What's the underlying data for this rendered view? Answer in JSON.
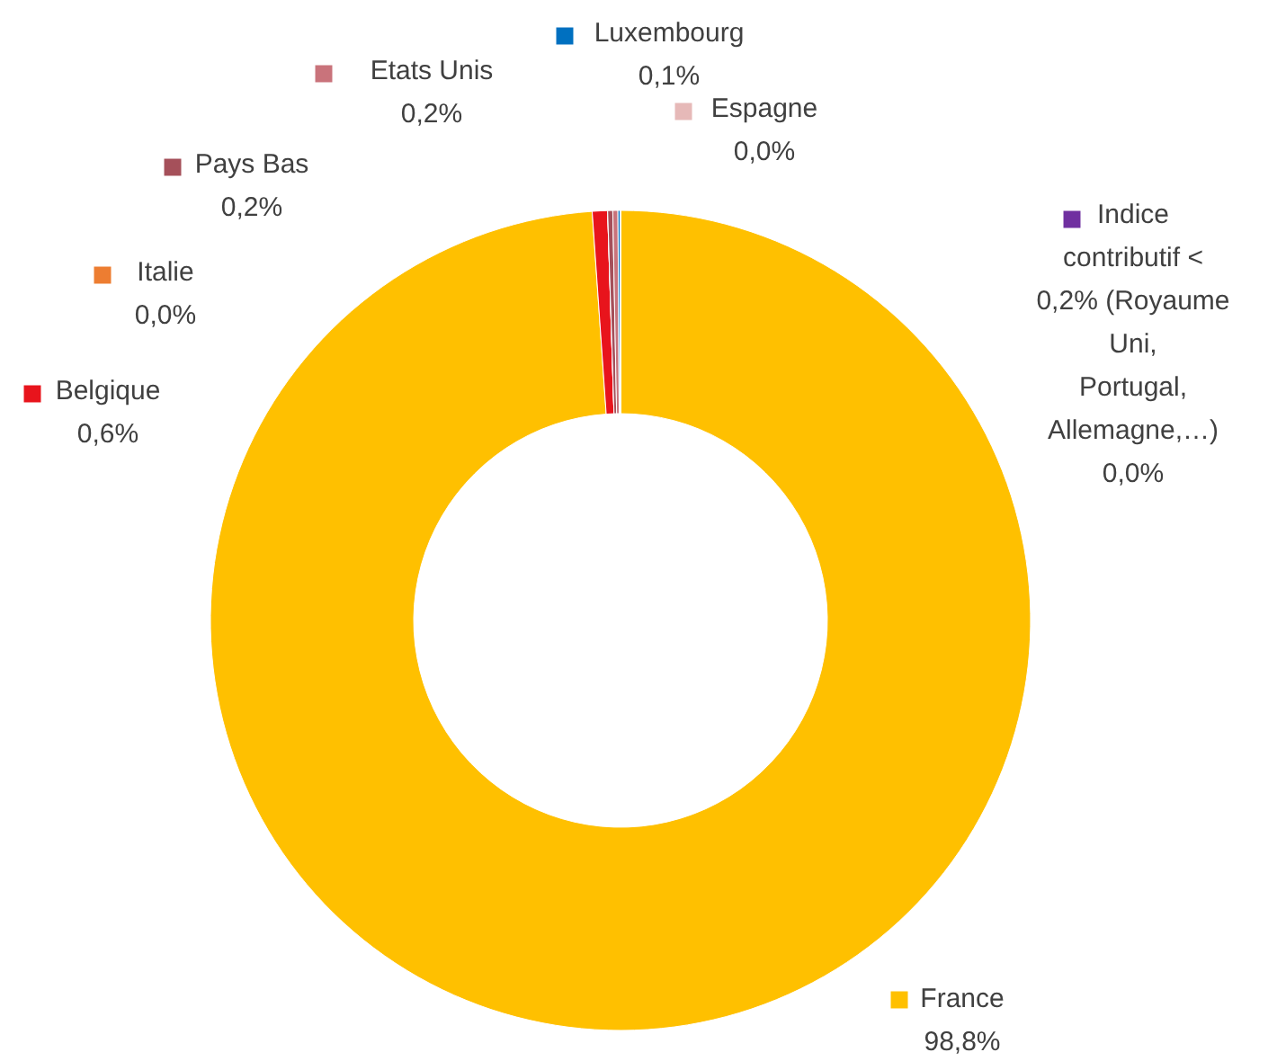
{
  "chart_data": {
    "type": "donut",
    "legend": "top",
    "categories": [
      "France",
      "Belgique",
      "Italie",
      "Pays Bas",
      "Etats Unis",
      "Luxembourg",
      "Espagne",
      "Indice contributif < 0,2% (Royaume Uni, Portugal, Allemagne,…)"
    ],
    "values": [
      98.8,
      0.6,
      0.0,
      0.2,
      0.2,
      0.1,
      0.0,
      0.0
    ],
    "value_labels": [
      "98,8%",
      "0,6%",
      "0,0%",
      "0,2%",
      "0,2%",
      "0,1%",
      "0,0%",
      "0,0%"
    ],
    "colors": [
      "#ffc000",
      "#e8141c",
      "#ed7d31",
      "#a5505a",
      "#c9737b",
      "#0070c0",
      "#e6b9b8",
      "#7030a0"
    ]
  }
}
